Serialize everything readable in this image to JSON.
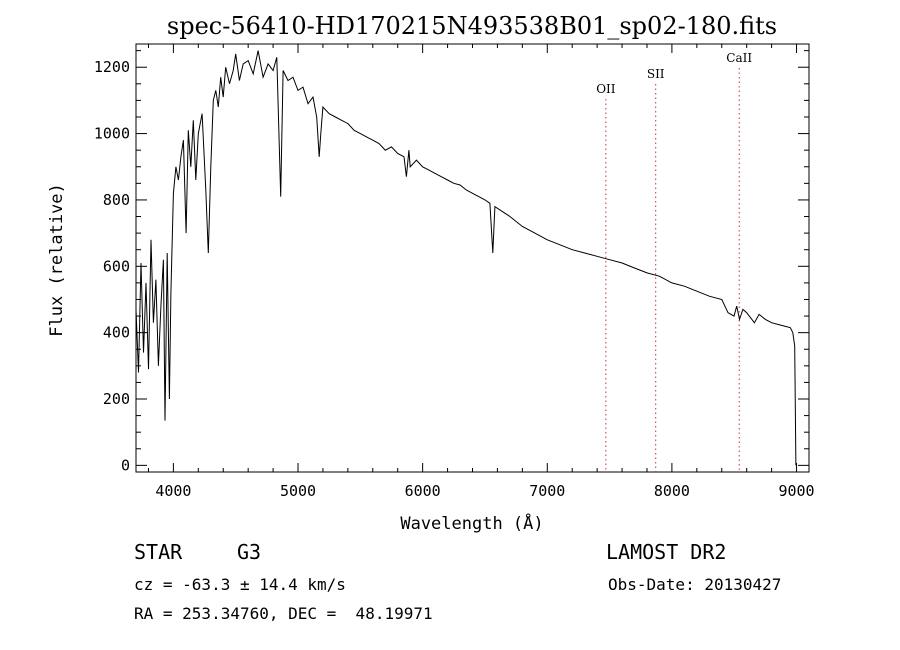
{
  "chart_data": {
    "type": "line",
    "title": "spec-56410-HD170215N493538B01_sp02-180.fits",
    "xlabel": "Wavelength (Å)",
    "ylabel": "Flux (relative)",
    "xlim": [
      3700,
      9100
    ],
    "ylim": [
      -20,
      1270
    ],
    "x_ticks": [
      4000,
      5000,
      6000,
      7000,
      8000,
      9000
    ],
    "y_ticks": [
      0,
      200,
      400,
      600,
      800,
      1000,
      1200
    ],
    "grid": false,
    "series": [
      {
        "color": "#000000",
        "x": [
          3700,
          3720,
          3740,
          3760,
          3780,
          3800,
          3820,
          3840,
          3860,
          3880,
          3900,
          3920,
          3933,
          3950,
          3968,
          3980,
          4000,
          4020,
          4040,
          4060,
          4080,
          4102,
          4120,
          4140,
          4160,
          4180,
          4200,
          4230,
          4260,
          4280,
          4300,
          4320,
          4340,
          4360,
          4380,
          4400,
          4420,
          4450,
          4480,
          4500,
          4530,
          4560,
          4600,
          4640,
          4680,
          4720,
          4760,
          4800,
          4830,
          4861,
          4880,
          4920,
          4960,
          5000,
          5040,
          5080,
          5120,
          5150,
          5170,
          5183,
          5200,
          5250,
          5300,
          5350,
          5400,
          5450,
          5500,
          5550,
          5600,
          5650,
          5700,
          5750,
          5800,
          5850,
          5870,
          5890,
          5900,
          5950,
          6000,
          6050,
          6100,
          6150,
          6200,
          6250,
          6300,
          6350,
          6400,
          6450,
          6500,
          6540,
          6563,
          6580,
          6620,
          6700,
          6800,
          6900,
          7000,
          7100,
          7200,
          7300,
          7400,
          7500,
          7600,
          7700,
          7800,
          7900,
          8000,
          8100,
          8200,
          8300,
          8400,
          8450,
          8498,
          8520,
          8542,
          8570,
          8600,
          8662,
          8700,
          8750,
          8800,
          8850,
          8900,
          8950,
          8970,
          8985,
          8995
        ],
        "y": [
          470,
          280,
          610,
          340,
          550,
          290,
          680,
          430,
          560,
          300,
          480,
          620,
          135,
          640,
          200,
          520,
          820,
          900,
          860,
          930,
          980,
          700,
          1010,
          900,
          1040,
          860,
          1000,
          1060,
          830,
          640,
          900,
          1100,
          1130,
          1080,
          1170,
          1110,
          1200,
          1150,
          1190,
          1240,
          1160,
          1210,
          1220,
          1180,
          1250,
          1170,
          1210,
          1190,
          1230,
          810,
          1190,
          1160,
          1170,
          1130,
          1140,
          1090,
          1110,
          1050,
          930,
          1000,
          1080,
          1060,
          1050,
          1040,
          1030,
          1010,
          1000,
          990,
          980,
          970,
          950,
          960,
          940,
          930,
          870,
          950,
          900,
          920,
          900,
          890,
          880,
          870,
          860,
          850,
          845,
          830,
          820,
          810,
          800,
          790,
          640,
          780,
          770,
          750,
          720,
          700,
          680,
          665,
          650,
          640,
          630,
          620,
          610,
          595,
          580,
          570,
          550,
          540,
          525,
          510,
          500,
          460,
          450,
          480,
          440,
          470,
          460,
          430,
          455,
          440,
          430,
          425,
          420,
          415,
          400,
          360,
          0
        ]
      }
    ],
    "annotations": [
      {
        "label": "OII",
        "x": 7470
      },
      {
        "label": "SII",
        "x": 7870
      },
      {
        "label": "CaII",
        "x": 8540
      }
    ]
  },
  "info": {
    "object_type": "STAR",
    "subclass": "G3",
    "survey": "LAMOST DR2",
    "cz": "cz = -63.3 ± 14.4 km/s",
    "obs_date": "Obs-Date: 20130427",
    "coords": "RA = 253.34760, DEC =  48.19971"
  }
}
